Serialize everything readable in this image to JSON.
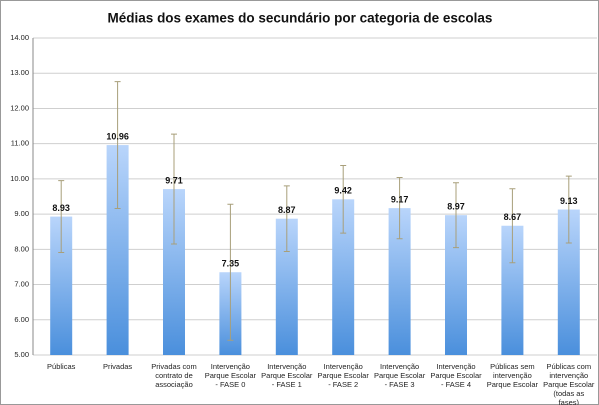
{
  "chart_data": {
    "type": "bar",
    "title": "Médias dos exames do secundário por categoria de escolas",
    "categories": [
      "Públicas",
      "Privadas",
      "Privadas com contrato de associação",
      "Intervenção Parque Escolar - FASE 0",
      "Intervenção Parque Escolar - FASE 1",
      "Intervenção Parque Escolar - FASE 2",
      "Intervenção Parque Escolar - FASE 3",
      "Intervenção Parque Escolar - FASE 4",
      "Públicas sem intervenção Parque Escolar",
      "Públicas com intervenção Parque Escolar (todas as fases)"
    ],
    "values": [
      8.93,
      10.96,
      9.71,
      7.35,
      8.87,
      9.42,
      9.17,
      8.97,
      8.67,
      9.13
    ],
    "errors": [
      1.02,
      1.8,
      1.56,
      1.93,
      0.93,
      0.96,
      0.87,
      0.92,
      1.05,
      0.95
    ],
    "color": "#4a8fdc",
    "error_color": "#a89f7a",
    "ylim": [
      5,
      14
    ],
    "yticks": [
      {
        "value": 5,
        "label": "5.00"
      },
      {
        "value": 6,
        "label": "6.00"
      },
      {
        "value": 7,
        "label": "7.00"
      },
      {
        "value": 8,
        "label": "8.00"
      },
      {
        "value": 9,
        "label": "9.00"
      },
      {
        "value": 10,
        "label": "10.00"
      },
      {
        "value": 11,
        "label": "11.00"
      },
      {
        "value": 12,
        "label": "12.00"
      },
      {
        "value": 13,
        "label": "13.00"
      },
      {
        "value": 14,
        "label": "14.00"
      }
    ],
    "grid": true
  }
}
